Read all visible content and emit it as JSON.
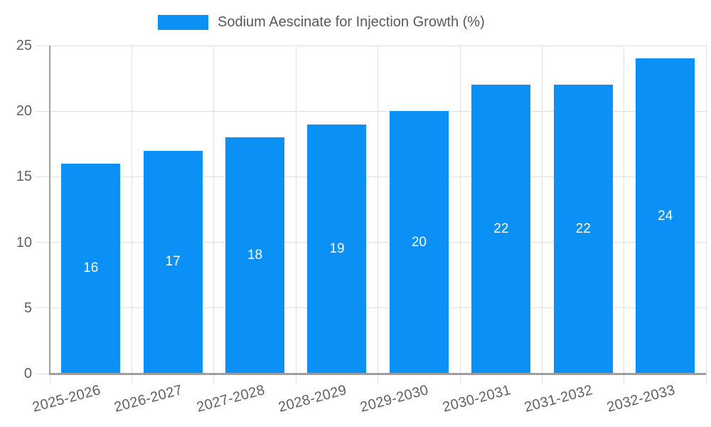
{
  "legend": {
    "label": "Sodium Aescinate for Injection Growth (%)"
  },
  "chart_data": {
    "type": "bar",
    "title": "",
    "categories": [
      "2025-2026",
      "2026-2027",
      "2027-2028",
      "2028-2029",
      "2029-2030",
      "2030-2031",
      "2031-2032",
      "2032-2033"
    ],
    "values": [
      16,
      17,
      18,
      19,
      20,
      22,
      22,
      24
    ],
    "series_name": "Sodium Aescinate for Injection Growth (%)",
    "xlabel": "",
    "ylabel": "",
    "ylim": [
      0,
      25
    ],
    "yticks": [
      0,
      5,
      10,
      15,
      20,
      25
    ],
    "grid": true,
    "legend_position": "top",
    "x_label_rotation_deg": -15,
    "bar_color": "#0b90f5",
    "value_label_color": "#ffffff",
    "axis_color": "#9e9e9e",
    "grid_color": "#e0e0e0",
    "tick_label_color": "#616161",
    "legend_text_color": "#595959",
    "background_color": "#ffffff"
  }
}
